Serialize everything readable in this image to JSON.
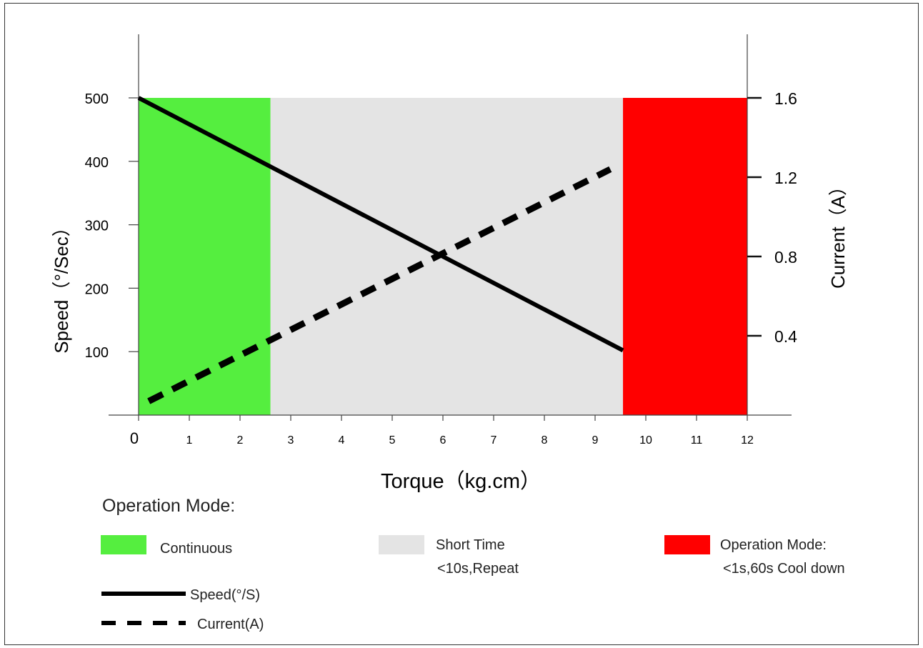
{
  "chart_data": {
    "type": "line",
    "title": "",
    "xlabel": "Torque（kg.cm）",
    "ylabel": "Speed（°/Sec）",
    "y2label": "Current（A）",
    "xlim": [
      0,
      12
    ],
    "ylim": [
      0,
      500
    ],
    "y2lim": [
      0,
      1.6
    ],
    "xticks": [
      0,
      1,
      2,
      3,
      4,
      5,
      6,
      7,
      8,
      9,
      10,
      11,
      12
    ],
    "yticks": [
      100,
      200,
      300,
      400,
      500
    ],
    "y2ticks": [
      "0.4",
      "0.8",
      "1.2",
      "1.6"
    ],
    "zones": [
      {
        "name": "Continuous",
        "from": 0,
        "to": 2.6,
        "color": "#55ee3f"
      },
      {
        "name": "Short Time",
        "from": 2.6,
        "to": 9.55,
        "color": "#e4e4e4"
      },
      {
        "name": "Operation Mode:",
        "from": 9.55,
        "to": 12,
        "color": "#ff0000"
      }
    ],
    "series": [
      {
        "name": "Speed(°/S)",
        "axis": "left",
        "style": "solid",
        "x": [
          0,
          9.55
        ],
        "y": [
          500,
          102
        ]
      },
      {
        "name": "Current(A)",
        "axis": "right",
        "style": "dashed",
        "x": [
          0.2,
          9.3
        ],
        "y": [
          0.07,
          1.24
        ]
      }
    ],
    "grid": false,
    "legend": {
      "title": "Operation Mode:",
      "entries": [
        {
          "label": "Continuous",
          "sub": "",
          "color": "#55ee3f"
        },
        {
          "label": "Short Time",
          "sub": "<10s,Repeat",
          "color": "#e4e4e4"
        },
        {
          "label": "Operation Mode:",
          "sub": "<1s,60s Cool down",
          "color": "#ff0000"
        }
      ],
      "lines": [
        {
          "label": "Speed(°/S)",
          "style": "solid"
        },
        {
          "label": "Current(A)",
          "style": "dashed"
        }
      ]
    }
  }
}
